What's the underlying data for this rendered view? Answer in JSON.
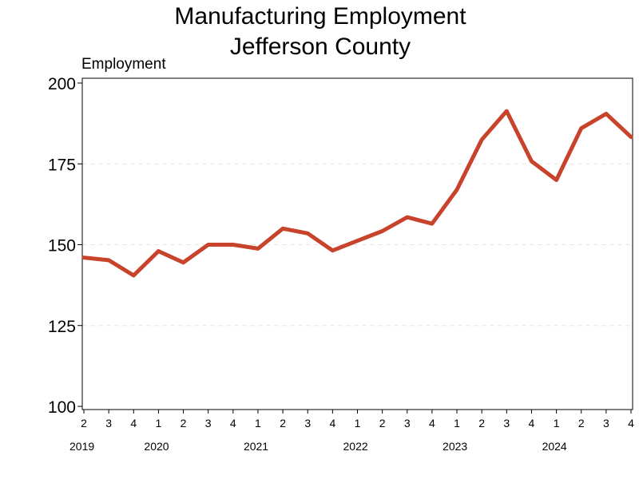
{
  "chart_data": {
    "type": "line",
    "title": [
      "Manufacturing Employment",
      "Jefferson County"
    ],
    "ylabel": "Employment",
    "xlabel": "",
    "ylim": [
      100,
      200
    ],
    "yticks": [
      100,
      125,
      150,
      175,
      200
    ],
    "grid": "horizontal dashed",
    "line_color": "#c8432b",
    "quarters": [
      "2",
      "3",
      "4",
      "1",
      "2",
      "3",
      "4",
      "1",
      "2",
      "3",
      "4",
      "1",
      "2",
      "3",
      "4",
      "1",
      "2",
      "3",
      "4",
      "1",
      "2",
      "3",
      "4"
    ],
    "years": [
      {
        "label": "2019",
        "start_index": 0
      },
      {
        "label": "2020",
        "start_index": 3
      },
      {
        "label": "2021",
        "start_index": 7
      },
      {
        "label": "2022",
        "start_index": 11
      },
      {
        "label": "2023",
        "start_index": 15
      },
      {
        "label": "2024",
        "start_index": 19
      }
    ],
    "series": [
      {
        "name": "Employment",
        "values": [
          146,
          145.2,
          140.5,
          148,
          144.5,
          150,
          150,
          148.8,
          155,
          153.5,
          148.2,
          151.2,
          154.2,
          158.5,
          156.5,
          167,
          182.5,
          191.3,
          175.8,
          170,
          186,
          190.5,
          183.3
        ]
      }
    ]
  }
}
